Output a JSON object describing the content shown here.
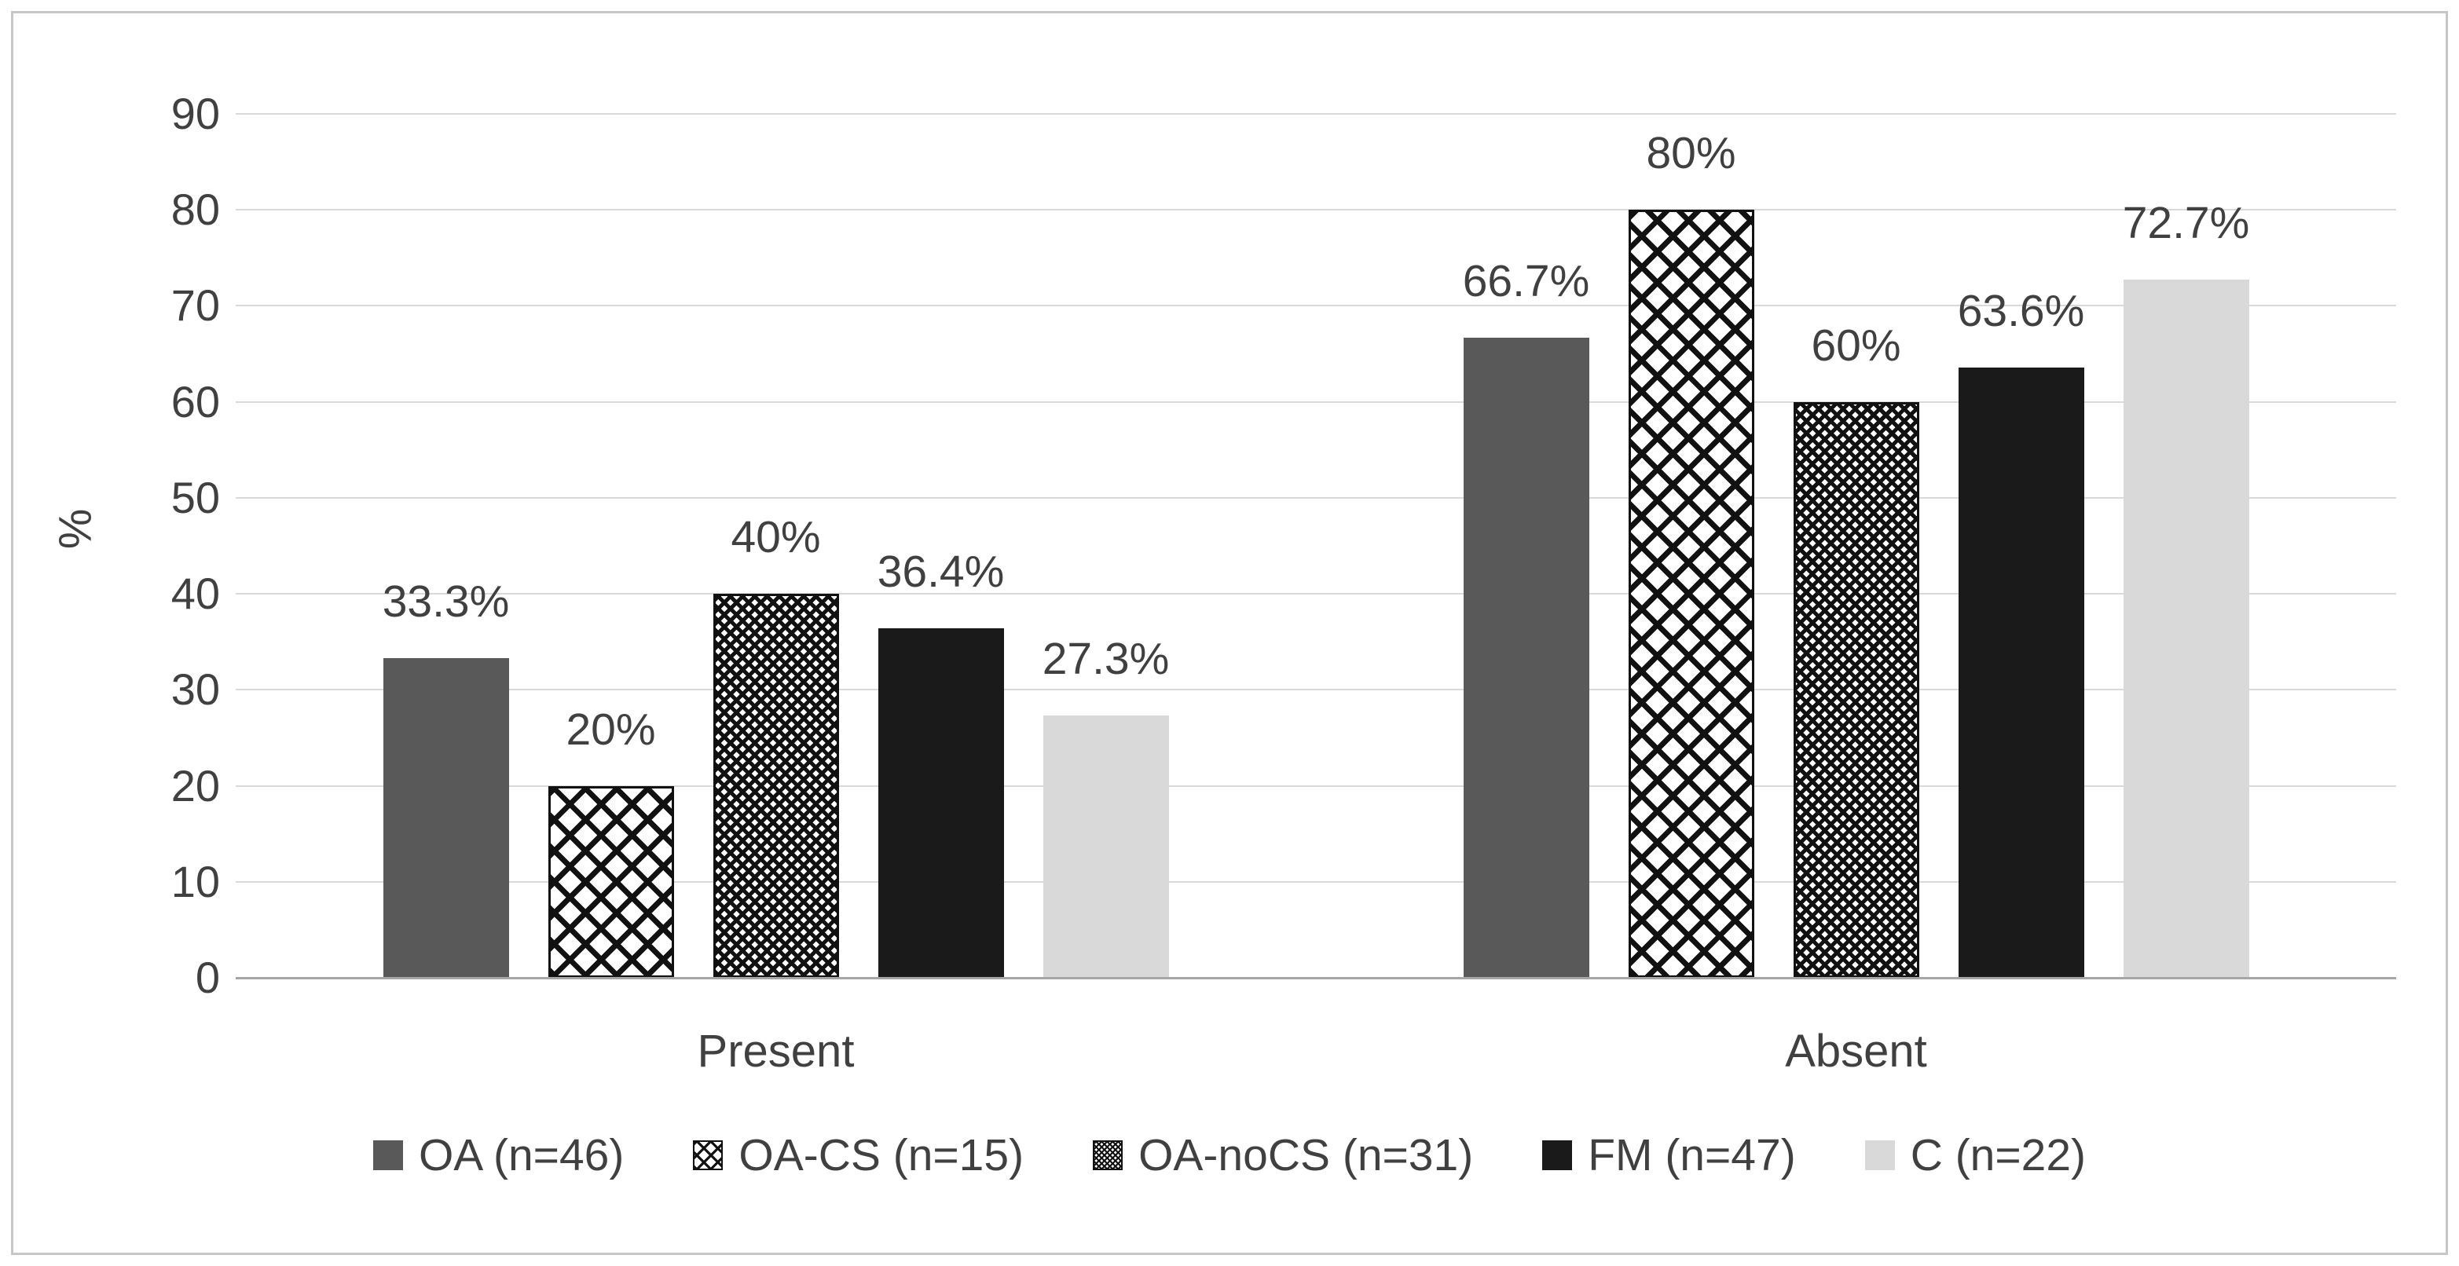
{
  "chart_data": {
    "type": "bar",
    "title": "",
    "categories": [
      "Present",
      "Absent"
    ],
    "series": [
      {
        "name": "OA (n=46)",
        "values": [
          33.3,
          66.7
        ],
        "labels": [
          "33.3%",
          "66.7%"
        ],
        "style": "solid",
        "color": "#595959"
      },
      {
        "name": "OA-CS (n=15)",
        "values": [
          20,
          80
        ],
        "labels": [
          "20%",
          "80%"
        ],
        "style": "crosshatch-wide",
        "pattern_fg": "#111111",
        "pattern_bg": "#ffffff"
      },
      {
        "name": "OA-noCS (n=31)",
        "values": [
          40,
          60
        ],
        "labels": [
          "40%",
          "60%"
        ],
        "style": "crosshatch-dense",
        "pattern_fg": "#111111",
        "pattern_bg": "#ffffff"
      },
      {
        "name": "FM (n=47)",
        "values": [
          36.4,
          63.6
        ],
        "labels": [
          "36.4%",
          "63.6%"
        ],
        "style": "solid",
        "color": "#1a1a1a"
      },
      {
        "name": "C (n=22)",
        "values": [
          27.3,
          72.7
        ],
        "labels": [
          "27.3%",
          "72.7%"
        ],
        "style": "solid",
        "color": "#d9d9d9"
      }
    ],
    "xlabel": "",
    "ylabel": "%",
    "ylim": [
      0,
      90
    ],
    "yticks": [
      0,
      10,
      20,
      30,
      40,
      50,
      60,
      70,
      80,
      90
    ],
    "grid": true,
    "legend_position": "bottom",
    "colors": {
      "grid": "#d9d9d9",
      "axis": "#a6a6a6",
      "text": "#404040",
      "frame": "#c6c6c6",
      "background": "#ffffff"
    }
  }
}
